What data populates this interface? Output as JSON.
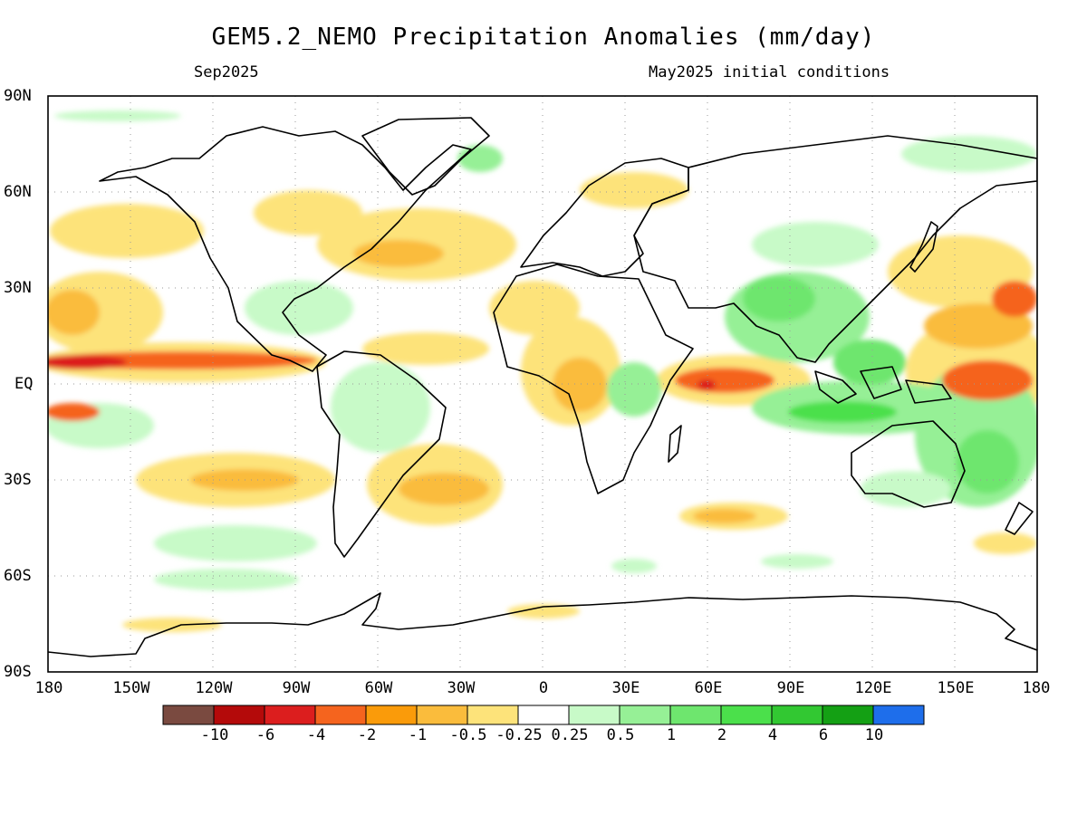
{
  "title": "GEM5.2_NEMO Precipitation Anomalies (mm/day)",
  "valid_month": "Sep2025",
  "init_conditions": "May2025 initial conditions",
  "lat_labels": [
    "90N",
    "60N",
    "30N",
    "EQ",
    "30S",
    "60S",
    "90S"
  ],
  "lon_labels": [
    "180",
    "150W",
    "120W",
    "90W",
    "60W",
    "30W",
    "0",
    "30E",
    "60E",
    "90E",
    "120E",
    "150E",
    "180"
  ],
  "colorbar": {
    "labels": [
      "-10",
      "-6",
      "-4",
      "-2",
      "-1",
      "-0.5",
      "-0.25",
      "0.25",
      "0.5",
      "1",
      "2",
      "4",
      "6",
      "10"
    ],
    "colors": [
      "#7a4a40",
      "#b40a0a",
      "#dc1e1e",
      "#f5641e",
      "#fa9b0a",
      "#fabc3c",
      "#fde37a",
      "#ffffff",
      "#c8fac8",
      "#96f096",
      "#6ee66e",
      "#4be04b",
      "#32c832",
      "#14a014",
      "#1e6eeb"
    ]
  }
}
